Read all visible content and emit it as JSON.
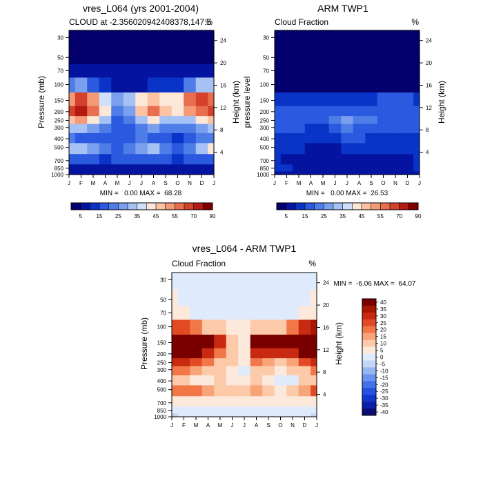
{
  "chart_data": [
    {
      "type": "heatmap",
      "title": "vres_L064 (yrs 2001-2004)",
      "subtitle_left": "CLOUD at -2.356020942408378,147.5",
      "subtitle_right": "%",
      "xlabel": "",
      "ylabel": "Pressure (mb)",
      "ylabel_right": "Height (km)",
      "x_ticks": [
        "J",
        "F",
        "M",
        "A",
        "M",
        "J",
        "J",
        "A",
        "S",
        "O",
        "N",
        "D",
        "J"
      ],
      "y_ticks": [
        "30",
        "50",
        "70",
        "100",
        "150",
        "200",
        "250",
        "300",
        "400",
        "500",
        "700",
        "850",
        "1000"
      ],
      "y_ticks_right": [
        "24",
        "20",
        "16",
        "12",
        "8",
        "4"
      ],
      "stats": "MIN =   0.00 MAX =  68.28",
      "colorbar_labels": [
        "5",
        "15",
        "25",
        "35",
        "45",
        "55",
        "70",
        "90"
      ],
      "pressure_levels": [
        30,
        50,
        70,
        100,
        150,
        200,
        250,
        300,
        400,
        500,
        700,
        850,
        1000
      ],
      "values": [
        [
          0,
          0,
          0,
          0,
          0,
          0,
          0,
          0,
          0,
          0,
          0,
          0,
          0
        ],
        [
          0,
          0,
          0,
          0,
          0,
          0,
          0,
          0,
          0,
          0,
          0,
          0,
          0
        ],
        [
          2,
          2,
          3,
          3,
          3,
          3,
          2,
          2,
          2,
          2,
          2,
          2,
          2
        ],
        [
          22,
          24,
          18,
          10,
          8,
          6,
          8,
          10,
          10,
          12,
          20,
          30,
          32
        ],
        [
          50,
          58,
          48,
          35,
          25,
          28,
          40,
          45,
          40,
          40,
          52,
          58,
          55
        ],
        [
          58,
          62,
          55,
          38,
          22,
          25,
          45,
          52,
          42,
          38,
          48,
          55,
          58
        ],
        [
          42,
          48,
          38,
          28,
          18,
          22,
          30,
          40,
          32,
          28,
          30,
          40,
          45
        ],
        [
          30,
          30,
          25,
          22,
          15,
          18,
          22,
          25,
          22,
          20,
          20,
          25,
          28
        ],
        [
          20,
          18,
          15,
          14,
          15,
          18,
          20,
          18,
          14,
          10,
          14,
          20,
          22
        ],
        [
          28,
          30,
          25,
          22,
          18,
          20,
          25,
          28,
          22,
          18,
          20,
          28,
          40
        ],
        [
          15,
          14,
          14,
          13,
          14,
          16,
          14,
          14,
          14,
          13,
          14,
          15,
          15
        ],
        [
          6,
          6,
          7,
          7,
          6,
          6,
          6,
          6,
          5,
          5,
          6,
          6,
          6
        ],
        [
          3,
          3,
          3,
          3,
          3,
          3,
          3,
          3,
          3,
          3,
          3,
          3,
          3
        ]
      ]
    },
    {
      "type": "heatmap",
      "title": "ARM TWP1",
      "subtitle_left": "Cloud Fraction",
      "subtitle_right": "%",
      "xlabel": "",
      "ylabel": "pressure level",
      "ylabel_right": "Height (km)",
      "x_ticks": [
        "J",
        "F",
        "M",
        "A",
        "M",
        "J",
        "J",
        "A",
        "S",
        "O",
        "N",
        "D",
        "J"
      ],
      "y_ticks": [
        "30",
        "50",
        "70",
        "100",
        "150",
        "200",
        "250",
        "300",
        "400",
        "500",
        "700",
        "850",
        "1000"
      ],
      "y_ticks_right": [
        "24",
        "20",
        "16",
        "12",
        "8",
        "4"
      ],
      "stats": "MIN =   0.00 MAX =  26.53",
      "colorbar_labels": [
        "5",
        "15",
        "25",
        "35",
        "45",
        "55",
        "70",
        "90"
      ],
      "pressure_levels": [
        30,
        50,
        70,
        100,
        150,
        200,
        250,
        300,
        400,
        500,
        700,
        850,
        1000
      ],
      "values": [
        [
          0,
          0,
          0,
          0,
          0,
          0,
          0,
          0,
          0,
          0,
          0,
          0,
          0
        ],
        [
          0,
          0,
          0,
          0,
          0,
          0,
          0,
          0,
          0,
          0,
          0,
          0,
          0
        ],
        [
          0,
          0,
          0,
          0,
          0,
          0,
          0,
          0,
          0,
          0,
          0,
          0,
          0
        ],
        [
          1,
          1,
          1,
          1,
          1,
          1,
          1,
          1,
          1,
          1,
          1,
          1,
          1
        ],
        [
          12,
          13,
          13,
          12,
          12,
          12,
          12,
          12,
          13,
          14,
          14,
          14,
          13
        ],
        [
          16,
          18,
          18,
          16,
          15,
          16,
          18,
          18,
          18,
          16,
          17,
          17,
          16
        ],
        [
          16,
          18,
          18,
          17,
          15,
          20,
          25,
          22,
          20,
          18,
          18,
          17,
          16
        ],
        [
          14,
          15,
          14,
          12,
          12,
          16,
          22,
          18,
          15,
          14,
          14,
          14,
          14
        ],
        [
          13,
          12,
          12,
          10,
          10,
          12,
          14,
          14,
          13,
          12,
          11,
          12,
          13
        ],
        [
          12,
          12,
          11,
          8,
          8,
          9,
          12,
          12,
          12,
          12,
          12,
          12,
          12
        ],
        [
          10,
          9,
          8,
          6,
          7,
          8,
          9,
          9,
          9,
          9,
          9,
          9,
          10
        ],
        [
          10,
          10,
          8,
          7,
          7,
          8,
          8,
          8,
          8,
          8,
          8,
          8,
          10
        ],
        [
          6,
          6,
          6,
          6,
          6,
          6,
          6,
          6,
          6,
          6,
          6,
          6,
          6
        ]
      ]
    },
    {
      "type": "heatmap",
      "title": "vres_L064 - ARM TWP1",
      "subtitle_left": "Cloud Fraction",
      "subtitle_right": "%",
      "xlabel": "",
      "ylabel": "Pressure (mb)",
      "ylabel_right": "Height (km)",
      "x_ticks": [
        "J",
        "F",
        "M",
        "A",
        "M",
        "J",
        "J",
        "A",
        "S",
        "O",
        "N",
        "D",
        "J"
      ],
      "y_ticks": [
        "30",
        "50",
        "70",
        "100",
        "150",
        "200",
        "250",
        "300",
        "400",
        "500",
        "700",
        "850",
        "1000"
      ],
      "y_ticks_right": [
        "24",
        "20",
        "16",
        "12",
        "8",
        "4"
      ],
      "stats": "MIN =  -6.06 MAX =  64.07",
      "colorbar_labels": [
        "40",
        "35",
        "30",
        "25",
        "20",
        "15",
        "10",
        "5",
        "0",
        "-5",
        "-10",
        "-15",
        "-20",
        "-25",
        "-30",
        "-35",
        "-40"
      ],
      "pressure_levels": [
        30,
        50,
        70,
        100,
        150,
        200,
        250,
        300,
        400,
        500,
        700,
        850,
        1000
      ],
      "values": [
        [
          -2,
          -2,
          -2,
          -2,
          -2,
          -2,
          -2,
          -2,
          -2,
          -2,
          -2,
          -2,
          -2
        ],
        [
          3,
          -2,
          -2,
          -2,
          -2,
          -2,
          -2,
          -2,
          -2,
          -2,
          -2,
          -2,
          3
        ],
        [
          5,
          3,
          2,
          2,
          2,
          2,
          2,
          2,
          2,
          2,
          2,
          3,
          5
        ],
        [
          25,
          25,
          20,
          12,
          8,
          6,
          6,
          10,
          10,
          12,
          20,
          30,
          35
        ],
        [
          45,
          48,
          42,
          42,
          32,
          12,
          4,
          38,
          44,
          42,
          45,
          48,
          48
        ],
        [
          42,
          44,
          40,
          30,
          22,
          12,
          5,
          32,
          32,
          28,
          32,
          40,
          42
        ],
        [
          30,
          32,
          26,
          20,
          12,
          8,
          4,
          20,
          16,
          12,
          14,
          24,
          30
        ],
        [
          18,
          20,
          14,
          12,
          8,
          4,
          2,
          10,
          8,
          6,
          8,
          12,
          18
        ],
        [
          10,
          8,
          6,
          6,
          8,
          6,
          4,
          8,
          4,
          -2,
          2,
          10,
          12
        ],
        [
          18,
          22,
          18,
          14,
          12,
          10,
          12,
          16,
          12,
          6,
          8,
          16,
          24
        ],
        [
          6,
          5,
          6,
          6,
          6,
          6,
          5,
          6,
          6,
          5,
          6,
          6,
          6
        ],
        [
          -2,
          0,
          0,
          0,
          0,
          0,
          0,
          0,
          0,
          0,
          0,
          -2,
          -2
        ],
        [
          -3,
          -2,
          -1,
          -1,
          -1,
          -1,
          -1,
          -1,
          -1,
          -1,
          -1,
          -2,
          -3
        ]
      ]
    }
  ]
}
